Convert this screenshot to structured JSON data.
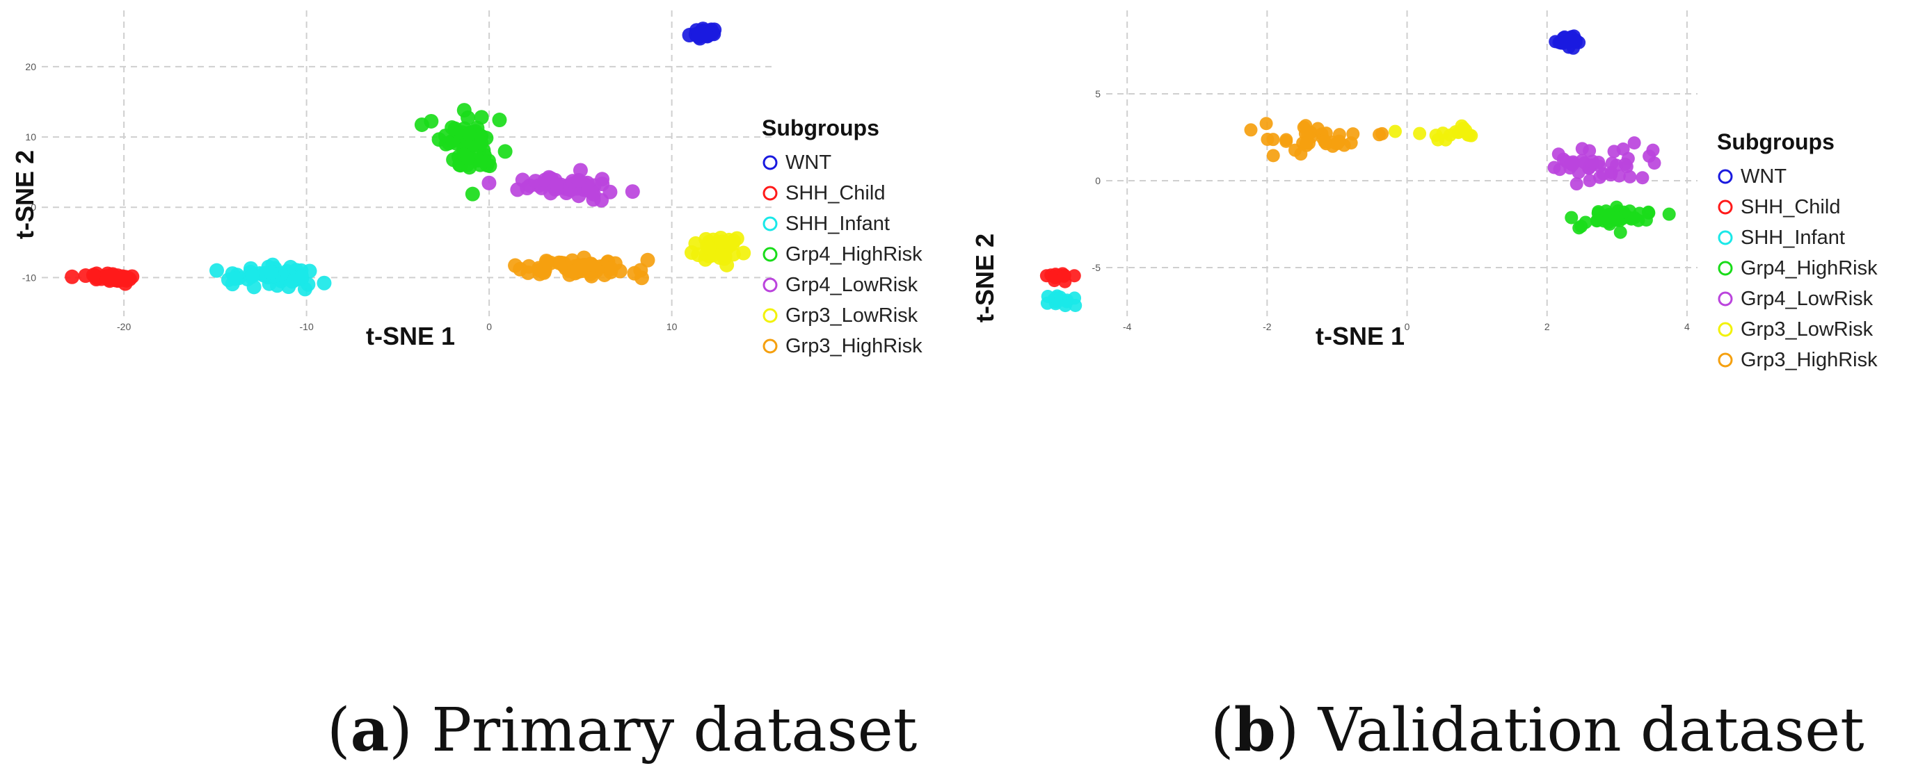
{
  "chart_data": [
    {
      "type": "scatter",
      "panel_letter": "a",
      "caption": "Primary dataset",
      "xlabel": "t-SNE 1",
      "ylabel": "t-SNE 2",
      "xlim": [
        -24.5,
        15.5
      ],
      "ylim": [
        -15.5,
        28
      ],
      "xticks": [
        -20,
        -10,
        0,
        10
      ],
      "yticks": [
        -10,
        0,
        10,
        20
      ],
      "grid": true,
      "legend": {
        "title": "Subgroups",
        "position": "right"
      },
      "series": [
        {
          "name": "WNT",
          "color": "#1a1adf",
          "center": [
            11.8,
            24.8
          ],
          "spread": [
            0.6,
            0.8
          ],
          "count": 30,
          "seed": 11
        },
        {
          "name": "SHH_Child",
          "color": "#ff1a1a",
          "center": [
            -20.5,
            -10.0
          ],
          "spread": [
            1.6,
            0.5
          ],
          "count": 34,
          "seed": 12
        },
        {
          "name": "SHH_Infant",
          "color": "#1ae8e8",
          "center": [
            -12.0,
            -9.8
          ],
          "spread": [
            2.3,
            1.4
          ],
          "count": 50,
          "seed": 13
        },
        {
          "name": "Grp4_HighRisk",
          "color": "#1adc1a",
          "center": [
            -0.8,
            9.0
          ],
          "spread": [
            1.8,
            4.0
          ],
          "count": 62,
          "seed": 14
        },
        {
          "name": "Grp4_LowRisk",
          "color": "#bb44dd",
          "center": [
            4.5,
            3.0
          ],
          "spread": [
            2.6,
            1.6
          ],
          "count": 54,
          "seed": 15
        },
        {
          "name": "Grp3_LowRisk",
          "color": "#f2f20a",
          "center": [
            12.5,
            -6.0
          ],
          "spread": [
            1.2,
            1.6
          ],
          "count": 40,
          "seed": 16
        },
        {
          "name": "Grp3_HighRisk",
          "color": "#f5a00f",
          "center": [
            4.8,
            -8.8
          ],
          "spread": [
            2.7,
            1.1
          ],
          "count": 58,
          "seed": 17
        }
      ]
    },
    {
      "type": "scatter",
      "panel_letter": "b",
      "caption": "Validation dataset",
      "xlabel": "t-SNE 1",
      "ylabel": "t-SNE 2",
      "xlim": [
        -4.3,
        4.15
      ],
      "ylim": [
        -7.8,
        9.8
      ],
      "xticks": [
        -4,
        -2,
        0,
        2,
        4
      ],
      "yticks": [
        -5,
        0,
        5
      ],
      "grid": true,
      "legend": {
        "title": "Subgroups",
        "position": "right"
      },
      "series": [
        {
          "name": "WNT",
          "color": "#1a1adf",
          "center": [
            2.3,
            8.0
          ],
          "spread": [
            0.2,
            0.4
          ],
          "count": 16,
          "seed": 21
        },
        {
          "name": "SHH_Child",
          "color": "#ff1a1a",
          "center": [
            -5.0,
            -5.5
          ],
          "spread": [
            0.2,
            0.3
          ],
          "count": 12,
          "seed": 22
        },
        {
          "name": "SHH_Infant",
          "color": "#1ae8e8",
          "center": [
            -4.9,
            -6.9
          ],
          "spread": [
            0.2,
            0.3
          ],
          "count": 14,
          "seed": 23
        },
        {
          "name": "Grp4_HighRisk",
          "color": "#1adc1a",
          "center": [
            2.9,
            -2.2
          ],
          "spread": [
            0.5,
            0.6
          ],
          "count": 40,
          "seed": 24
        },
        {
          "name": "Grp4_LowRisk",
          "color": "#bb44dd",
          "center": [
            2.8,
            0.8
          ],
          "spread": [
            0.7,
            0.9
          ],
          "count": 42,
          "seed": 25
        },
        {
          "name": "Grp3_LowRisk",
          "color": "#f2f20a",
          "center": [
            0.6,
            2.9
          ],
          "spread": [
            0.7,
            0.5
          ],
          "count": 16,
          "seed": 26
        },
        {
          "name": "Grp3_HighRisk",
          "color": "#f5a00f",
          "center": [
            -1.4,
            2.5
          ],
          "spread": [
            0.7,
            0.8
          ],
          "count": 36,
          "seed": 27
        }
      ]
    }
  ]
}
